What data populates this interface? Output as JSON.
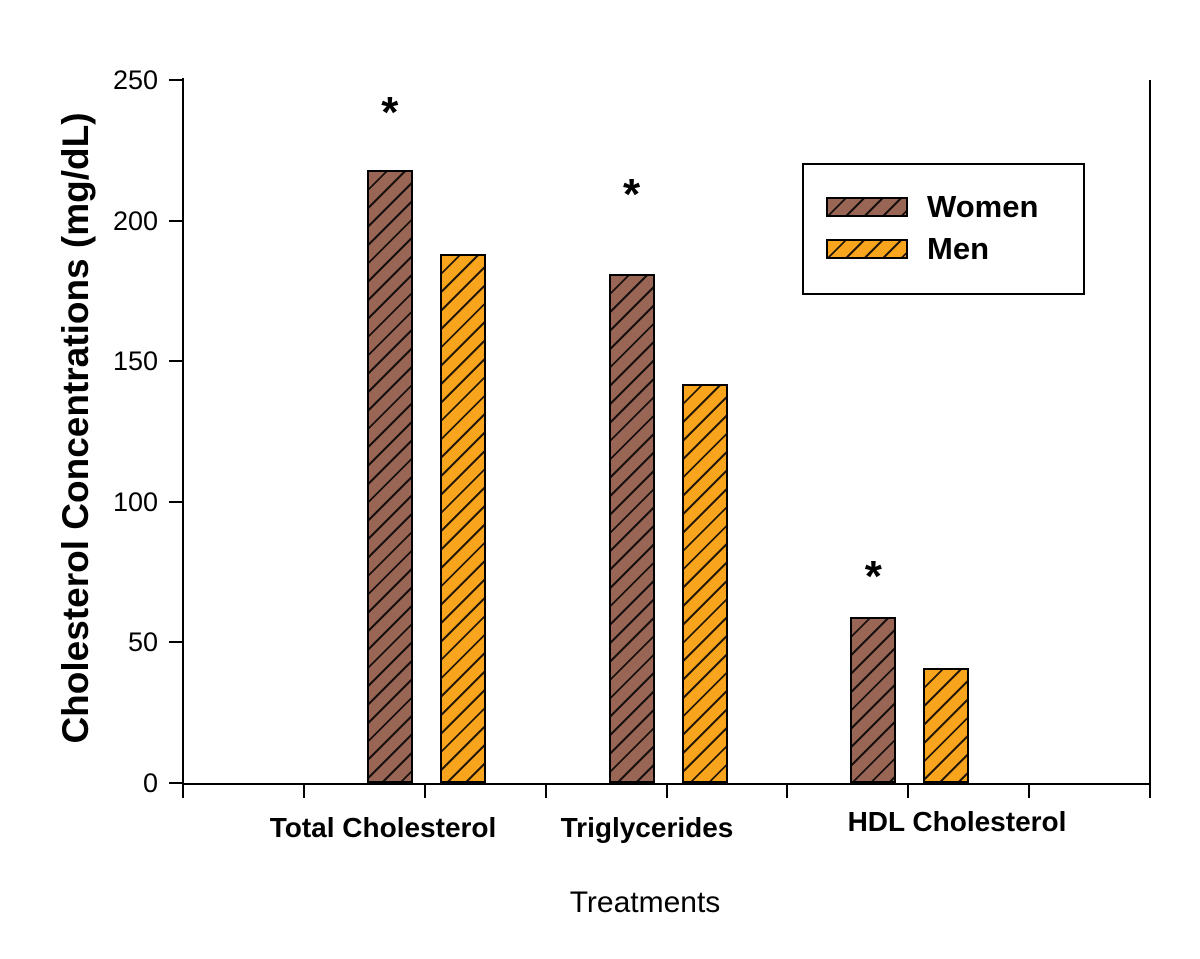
{
  "chart_data": {
    "type": "bar",
    "title": "",
    "xlabel": "Treatments",
    "ylabel": "Cholesterol Concentrations (mg/dL)",
    "categories": [
      "Total Cholesterol",
      "Triglycerides",
      "HDL Cholesterol"
    ],
    "series": [
      {
        "name": "Women",
        "color": "#996655",
        "values": [
          218,
          181,
          59
        ]
      },
      {
        "name": "Men",
        "color": "#F8A41C",
        "values": [
          188,
          142,
          41
        ]
      }
    ],
    "ylim": [
      0,
      250
    ],
    "yticks": [
      0,
      50,
      100,
      150,
      200,
      250
    ],
    "grid": false,
    "hatch": "/",
    "bar_border_color": "#000000",
    "axis_color": "#000000",
    "background_color": "#FFFFFF",
    "legend": {
      "position": "upper-right",
      "items": [
        "Women",
        "Men"
      ]
    },
    "annotations": [
      {
        "text": "*",
        "series": "Women",
        "category": "Total Cholesterol"
      },
      {
        "text": "*",
        "series": "Women",
        "category": "Triglycerides"
      },
      {
        "text": "*",
        "series": "Women",
        "category": "HDL Cholesterol"
      }
    ]
  }
}
